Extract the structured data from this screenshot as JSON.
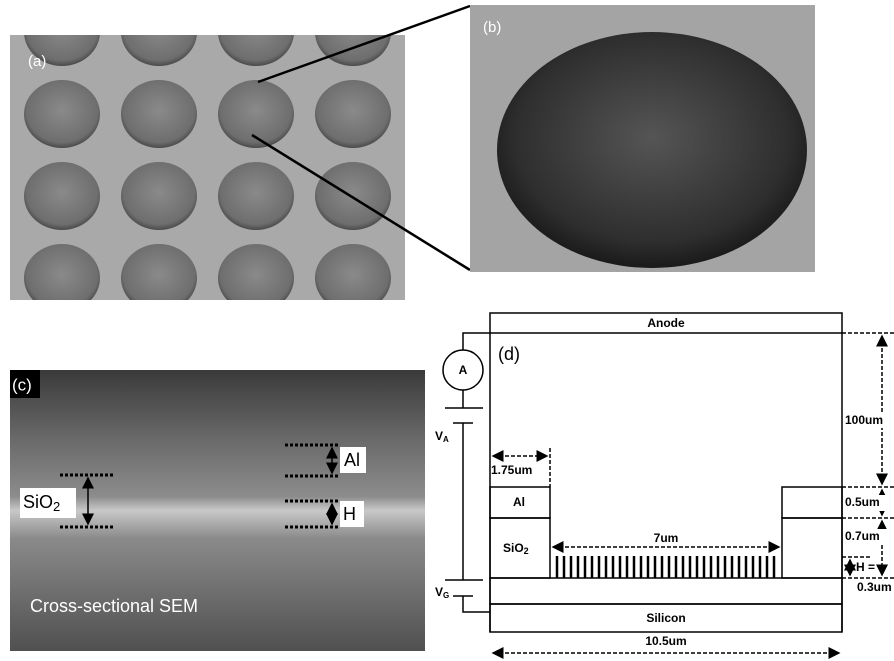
{
  "panels": {
    "a": {
      "label": "(a)"
    },
    "b": {
      "label": "(b)"
    },
    "c": {
      "label": "(c)",
      "al": "Al",
      "sio2": {
        "main": "SiO",
        "sub": "2"
      },
      "h": "H",
      "caption": "Cross-sectional SEM"
    },
    "d": {
      "label": "(d)",
      "anode": "Anode",
      "ammeter": "A",
      "va": {
        "main": "V",
        "sub": "A"
      },
      "vg": {
        "main": "V",
        "sub": "G"
      },
      "al": "Al",
      "sio2": {
        "main": "SiO",
        "sub": "2"
      },
      "silicon": "Silicon",
      "dims": {
        "al_width": "1.75um",
        "gap": "7um",
        "height": "100um",
        "al_height": "0.5um",
        "sio2_height": "0.7um",
        "h": "H =",
        "h_value": "0.3um",
        "width": "10.5um"
      }
    }
  }
}
